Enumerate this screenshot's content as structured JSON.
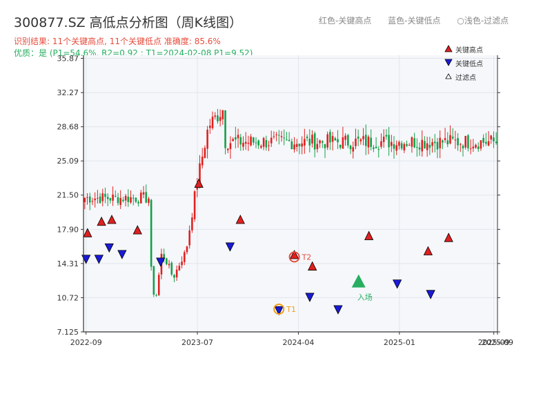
{
  "header": {
    "title": "300877.SZ 高低点分析图（周K线图）",
    "legend_red": "红色-关键高点",
    "legend_blue": "蓝色-关键低点",
    "legend_filtered": "○浅色-过滤点",
    "result_line": "识别结果: 11个关键高点, 11个关键低点   准确度: 85.6%",
    "quality_line": "优质：是  (P1=54.6%, R2=0.92 ; T1=2024-02-08 P1=9.52)"
  },
  "colors": {
    "up": "#e02020",
    "down": "#13a04a",
    "high_marker": "#e02020",
    "low_marker": "#1a1ad8",
    "t1": "#f39c12",
    "t2": "#e74c3c",
    "entry": "#27ae60",
    "grid": "#e1e5ec",
    "plot_bg": "#f5f7fa"
  },
  "chart_data": {
    "type": "candlestick",
    "x_start": "2022-08-25",
    "x_end": "2025-09-25",
    "y_range": [
      7.125,
      36.2
    ],
    "y_ticks": [
      "7.125",
      "10.72",
      "14.31",
      "17.90",
      "21.50",
      "25.09",
      "28.68",
      "32.27",
      "35.87"
    ],
    "x_ticks": [
      {
        "date": "2022-09-01",
        "label": "2022-09"
      },
      {
        "date": "2023-07-01",
        "label": "2023-07"
      },
      {
        "date": "2024-04-01",
        "label": "2024-04"
      },
      {
        "date": "2025-01-01",
        "label": "2025-01"
      },
      {
        "date": "2025-09-15",
        "label": "2025-09"
      },
      {
        "date": "2025-09-25",
        "label": "2025-09"
      }
    ],
    "key_points": [
      [
        17.2,
        5.6
      ],
      [
        16.0,
        21.2
      ],
      [
        14.8,
        18.7
      ],
      [
        17.1,
        10.0
      ],
      [
        18.7,
        15.4
      ],
      [
        18.2,
        16.0
      ],
      [
        19.8,
        14.6
      ],
      [
        21.5,
        12.8
      ],
      [
        24.0,
        15.2
      ],
      [
        24.5,
        15.3
      ],
      [
        27.2,
        22.7
      ],
      [
        30.1,
        28.8
      ],
      [
        34.1,
        30.8
      ],
      [
        31.2,
        27.1
      ],
      [
        29.0,
        26.4
      ]
    ],
    "highs": [
      {
        "date": "2022-09-05",
        "value": 17.4
      },
      {
        "date": "2022-10-13",
        "value": 18.6
      },
      {
        "date": "2022-11-10",
        "value": 18.8
      },
      {
        "date": "2023-01-19",
        "value": 17.7
      },
      {
        "date": "2023-07-05",
        "value": 22.6
      },
      {
        "date": "2023-10-26",
        "value": 18.8
      },
      {
        "date": "2024-03-21",
        "value": 15.1
      },
      {
        "date": "2024-05-09",
        "value": 13.9
      },
      {
        "date": "2024-10-10",
        "value": 17.1
      },
      {
        "date": "2025-03-20",
        "value": 15.5
      },
      {
        "date": "2025-05-15",
        "value": 16.9
      }
    ],
    "lows": [
      {
        "date": "2022-09-01",
        "value": 14.9
      },
      {
        "date": "2022-10-06",
        "value": 14.9
      },
      {
        "date": "2022-11-03",
        "value": 16.1
      },
      {
        "date": "2022-12-08",
        "value": 15.4
      },
      {
        "date": "2023-03-23",
        "value": 14.6
      },
      {
        "date": "2023-09-28",
        "value": 16.2
      },
      {
        "date": "2024-02-08",
        "value": 9.5
      },
      {
        "date": "2024-05-02",
        "value": 10.9
      },
      {
        "date": "2024-07-18",
        "value": 9.6
      },
      {
        "date": "2024-12-26",
        "value": 12.3
      },
      {
        "date": "2025-03-27",
        "value": 11.2
      }
    ],
    "annotations": [
      {
        "label": "T1",
        "date": "2024-02-08",
        "value": 9.52,
        "kind": "t1"
      },
      {
        "label": "T2",
        "date": "2024-03-21",
        "value": 15.0,
        "kind": "t2"
      },
      {
        "label": "入场",
        "date": "2024-09-12",
        "value": 12.3,
        "kind": "entry"
      }
    ],
    "legend": {
      "entries": [
        "关键高点",
        "关键低点",
        "过滤点"
      ],
      "position": "top-right"
    }
  }
}
